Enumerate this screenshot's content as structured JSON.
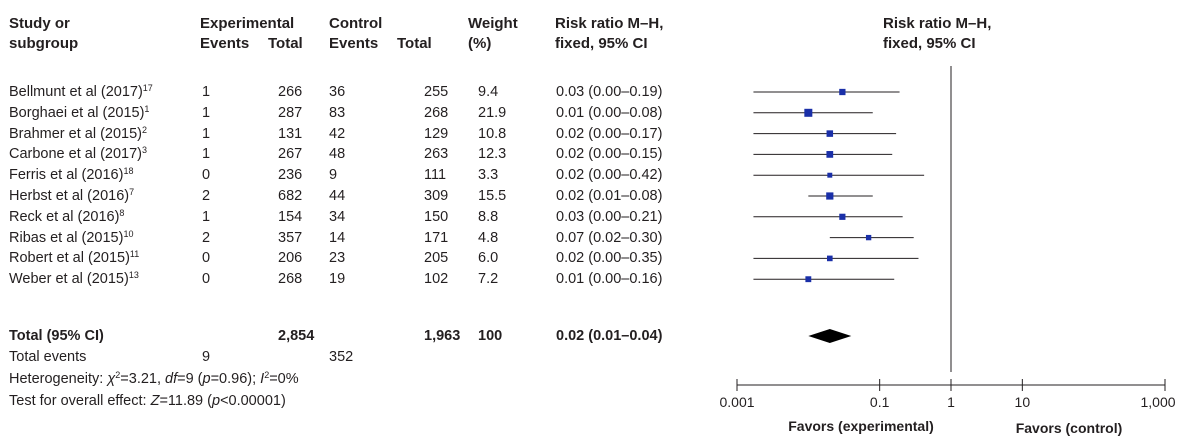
{
  "headers": {
    "study_line1": "Study or",
    "study_line2": "subgroup",
    "exp_line1": "Experimental",
    "ctrl_line1": "Control",
    "events": "Events",
    "total": "Total",
    "weight_line1": "Weight",
    "weight_line2": "(%)",
    "rr_line1": "Risk ratio M–H,",
    "rr_line2": "fixed, 95% CI",
    "plot_line1": "Risk ratio M–H,",
    "plot_line2": "fixed, 95% CI"
  },
  "studies": [
    {
      "name": "Bellmunt et al (2017)",
      "ref": "17",
      "exp_events": "1",
      "exp_total": "266",
      "ctrl_events": "36",
      "ctrl_total": "255",
      "weight": "9.4",
      "rr_text": "0.03 (0.00–0.19)"
    },
    {
      "name": "Borghaei et al (2015)",
      "ref": "1",
      "exp_events": "1",
      "exp_total": "287",
      "ctrl_events": "83",
      "ctrl_total": "268",
      "weight": "21.9",
      "rr_text": "0.01 (0.00–0.08)"
    },
    {
      "name": "Brahmer et al (2015)",
      "ref": "2",
      "exp_events": "1",
      "exp_total": "131",
      "ctrl_events": "42",
      "ctrl_total": "129",
      "weight": "10.8",
      "rr_text": "0.02 (0.00–0.17)"
    },
    {
      "name": "Carbone et al (2017)",
      "ref": "3",
      "exp_events": "1",
      "exp_total": "267",
      "ctrl_events": "48",
      "ctrl_total": "263",
      "weight": "12.3",
      "rr_text": "0.02 (0.00–0.15)"
    },
    {
      "name": "Ferris et al (2016)",
      "ref": "18",
      "exp_events": "0",
      "exp_total": "236",
      "ctrl_events": "9",
      "ctrl_total": "111",
      "weight": "3.3",
      "rr_text": "0.02 (0.00–0.42)"
    },
    {
      "name": "Herbst et al (2016)",
      "ref": "7",
      "exp_events": "2",
      "exp_total": "682",
      "ctrl_events": "44",
      "ctrl_total": "309",
      "weight": "15.5",
      "rr_text": "0.02 (0.01–0.08)"
    },
    {
      "name": "Reck et al (2016)",
      "ref": "8",
      "exp_events": "1",
      "exp_total": "154",
      "ctrl_events": "34",
      "ctrl_total": "150",
      "weight": "8.8",
      "rr_text": "0.03 (0.00–0.21)"
    },
    {
      "name": "Ribas et al (2015)",
      "ref": "10",
      "exp_events": "2",
      "exp_total": "357",
      "ctrl_events": "14",
      "ctrl_total": "171",
      "weight": "4.8",
      "rr_text": "0.07 (0.02–0.30)"
    },
    {
      "name": "Robert et al (2015)",
      "ref": "11",
      "exp_events": "0",
      "exp_total": "206",
      "ctrl_events": "23",
      "ctrl_total": "205",
      "weight": "6.0",
      "rr_text": "0.02 (0.00–0.35)"
    },
    {
      "name": "Weber et al (2015)",
      "ref": "13",
      "exp_events": "0",
      "exp_total": "268",
      "ctrl_events": "19",
      "ctrl_total": "102",
      "weight": "7.2",
      "rr_text": "0.01 (0.00–0.16)"
    }
  ],
  "total_row": {
    "label": "Total (95% CI)",
    "exp_total": "2,854",
    "ctrl_total": "1,963",
    "weight": "100",
    "rr_text": "0.02 (0.01–0.04)"
  },
  "events_row": {
    "label": "Total events",
    "exp_events": "9",
    "ctrl_events": "352"
  },
  "heterogeneity": {
    "prefix": "Heterogeneity: ",
    "chi": "χ",
    "chi_text": "=3.21, ",
    "df": "df",
    "df_text": "=9 (",
    "p": "p",
    "p_text": "=0.96); ",
    "i": "I",
    "i_text": "=0%"
  },
  "overall_effect": {
    "prefix": "Test for overall effect: ",
    "z": "Z",
    "z_text": "=11.89 (",
    "p": "p",
    "p_text": "<0.00001)"
  },
  "axis": {
    "ticks": [
      "0.001",
      "0.1",
      "1",
      "10",
      "1,000"
    ],
    "tick_values": [
      0.001,
      0.1,
      1,
      10,
      1000
    ],
    "favors_left": "Favors (experimental)",
    "favors_right": "Favors (control)"
  },
  "chart_data": {
    "type": "forest",
    "scale": "log",
    "xlim": [
      0.001,
      1000
    ],
    "reference_line": 1,
    "marker_color": "#1a2fa8",
    "studies": [
      {
        "name": "Bellmunt et al (2017)",
        "rr": 0.03,
        "lower": 0.0,
        "upper": 0.19,
        "weight": 9.4
      },
      {
        "name": "Borghaei et al (2015)",
        "rr": 0.01,
        "lower": 0.0,
        "upper": 0.08,
        "weight": 21.9
      },
      {
        "name": "Brahmer et al (2015)",
        "rr": 0.02,
        "lower": 0.0,
        "upper": 0.17,
        "weight": 10.8
      },
      {
        "name": "Carbone et al (2017)",
        "rr": 0.02,
        "lower": 0.0,
        "upper": 0.15,
        "weight": 12.3
      },
      {
        "name": "Ferris et al (2016)",
        "rr": 0.02,
        "lower": 0.0,
        "upper": 0.42,
        "weight": 3.3
      },
      {
        "name": "Herbst et al (2016)",
        "rr": 0.02,
        "lower": 0.01,
        "upper": 0.08,
        "weight": 15.5
      },
      {
        "name": "Reck et al (2016)",
        "rr": 0.03,
        "lower": 0.0,
        "upper": 0.21,
        "weight": 8.8
      },
      {
        "name": "Ribas et al (2015)",
        "rr": 0.07,
        "lower": 0.02,
        "upper": 0.3,
        "weight": 4.8
      },
      {
        "name": "Robert et al (2015)",
        "rr": 0.02,
        "lower": 0.0,
        "upper": 0.35,
        "weight": 6.0
      },
      {
        "name": "Weber et al (2015)",
        "rr": 0.01,
        "lower": 0.0,
        "upper": 0.16,
        "weight": 7.2
      }
    ],
    "pooled": {
      "rr": 0.02,
      "lower": 0.01,
      "upper": 0.04
    }
  }
}
